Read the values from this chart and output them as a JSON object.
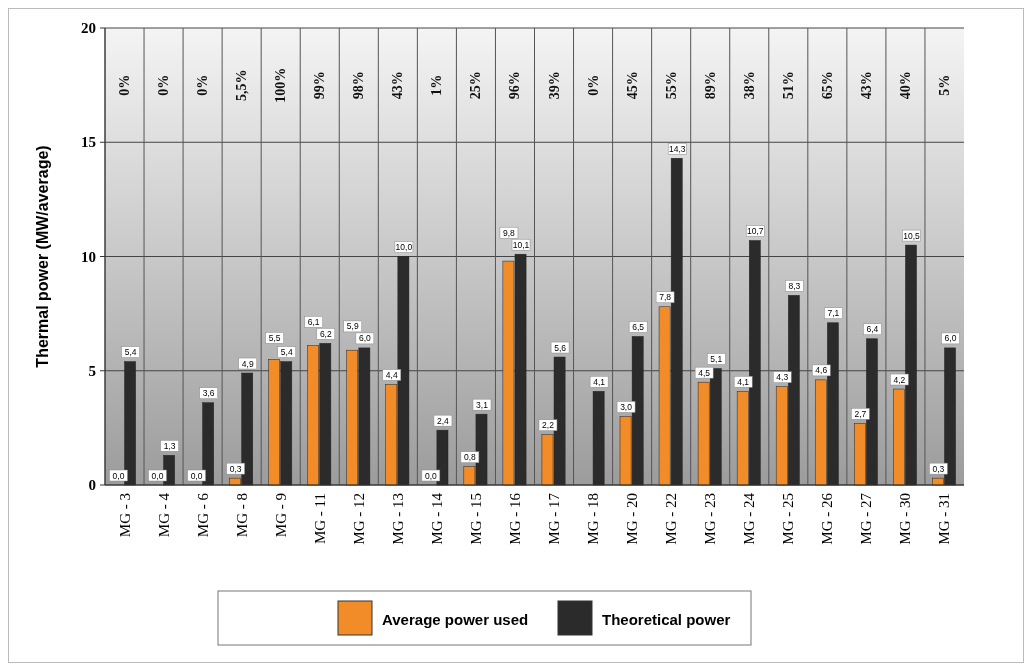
{
  "chart_data": {
    "type": "bar",
    "ylabel": "Thermal power (MW/average)",
    "categories": [
      "MG - 3",
      "MG - 4",
      "MG - 6",
      "MG - 8",
      "MG - 9",
      "MG - 11",
      "MG - 12",
      "MG - 13",
      "MG - 14",
      "MG - 15",
      "MG - 16",
      "MG - 17",
      "MG - 18",
      "MG - 20",
      "MG - 22",
      "MG - 23",
      "MG - 24",
      "MG - 25",
      "MG - 26",
      "MG - 27",
      "MG - 30",
      "MG - 31"
    ],
    "series": [
      {
        "name": "Average power used",
        "color": "#f28c28",
        "values": [
          0.0,
          0.0,
          0.0,
          0.3,
          5.5,
          6.1,
          5.9,
          4.4,
          0.0,
          0.8,
          9.8,
          2.2,
          null,
          3.0,
          7.8,
          4.5,
          4.1,
          4.3,
          4.6,
          2.7,
          4.2,
          0.3
        ],
        "value_labels": [
          "0,0",
          "0,0",
          "0,0",
          "0,3",
          "5,5",
          "6,1",
          "5,9",
          "4,4",
          "0,0",
          "0,8",
          "9,8",
          "2,2",
          null,
          "3,0",
          "7,8",
          "4,5",
          "4,1",
          "4,3",
          "4,6",
          "2,7",
          "4,2",
          "0,3"
        ]
      },
      {
        "name": "Theoretical power",
        "color": "#2b2b2b",
        "values": [
          5.4,
          1.3,
          3.6,
          4.9,
          5.4,
          6.2,
          6.0,
          10.0,
          2.4,
          3.1,
          10.1,
          5.6,
          4.1,
          6.5,
          14.3,
          5.1,
          10.7,
          8.3,
          7.1,
          6.4,
          10.5,
          6.0
        ],
        "value_labels": [
          "5,4",
          "1,3",
          "3,6",
          "4,9",
          "5,4",
          "6,2",
          "6,0",
          "10,0",
          "2,4",
          "3,1",
          "10,1",
          "5,6",
          "4,1",
          "6,5",
          "14,3",
          "5,1",
          "10,7",
          "8,3",
          "7,1",
          "6,4",
          "10,5",
          "6,0"
        ]
      }
    ],
    "ylim": [
      0,
      20
    ],
    "yticks": [
      0,
      5,
      10,
      15,
      20
    ],
    "grid": true,
    "legend": "bottom",
    "annotations": [
      "0%",
      "0%",
      "0%",
      "5,5%",
      "100%",
      "99%",
      "98%",
      "43%",
      "1%",
      "25%",
      "96%",
      "39%",
      "0%",
      "45%",
      "55%",
      "89%",
      "38%",
      "51%",
      "65%",
      "43%",
      "40%",
      "5%"
    ]
  }
}
